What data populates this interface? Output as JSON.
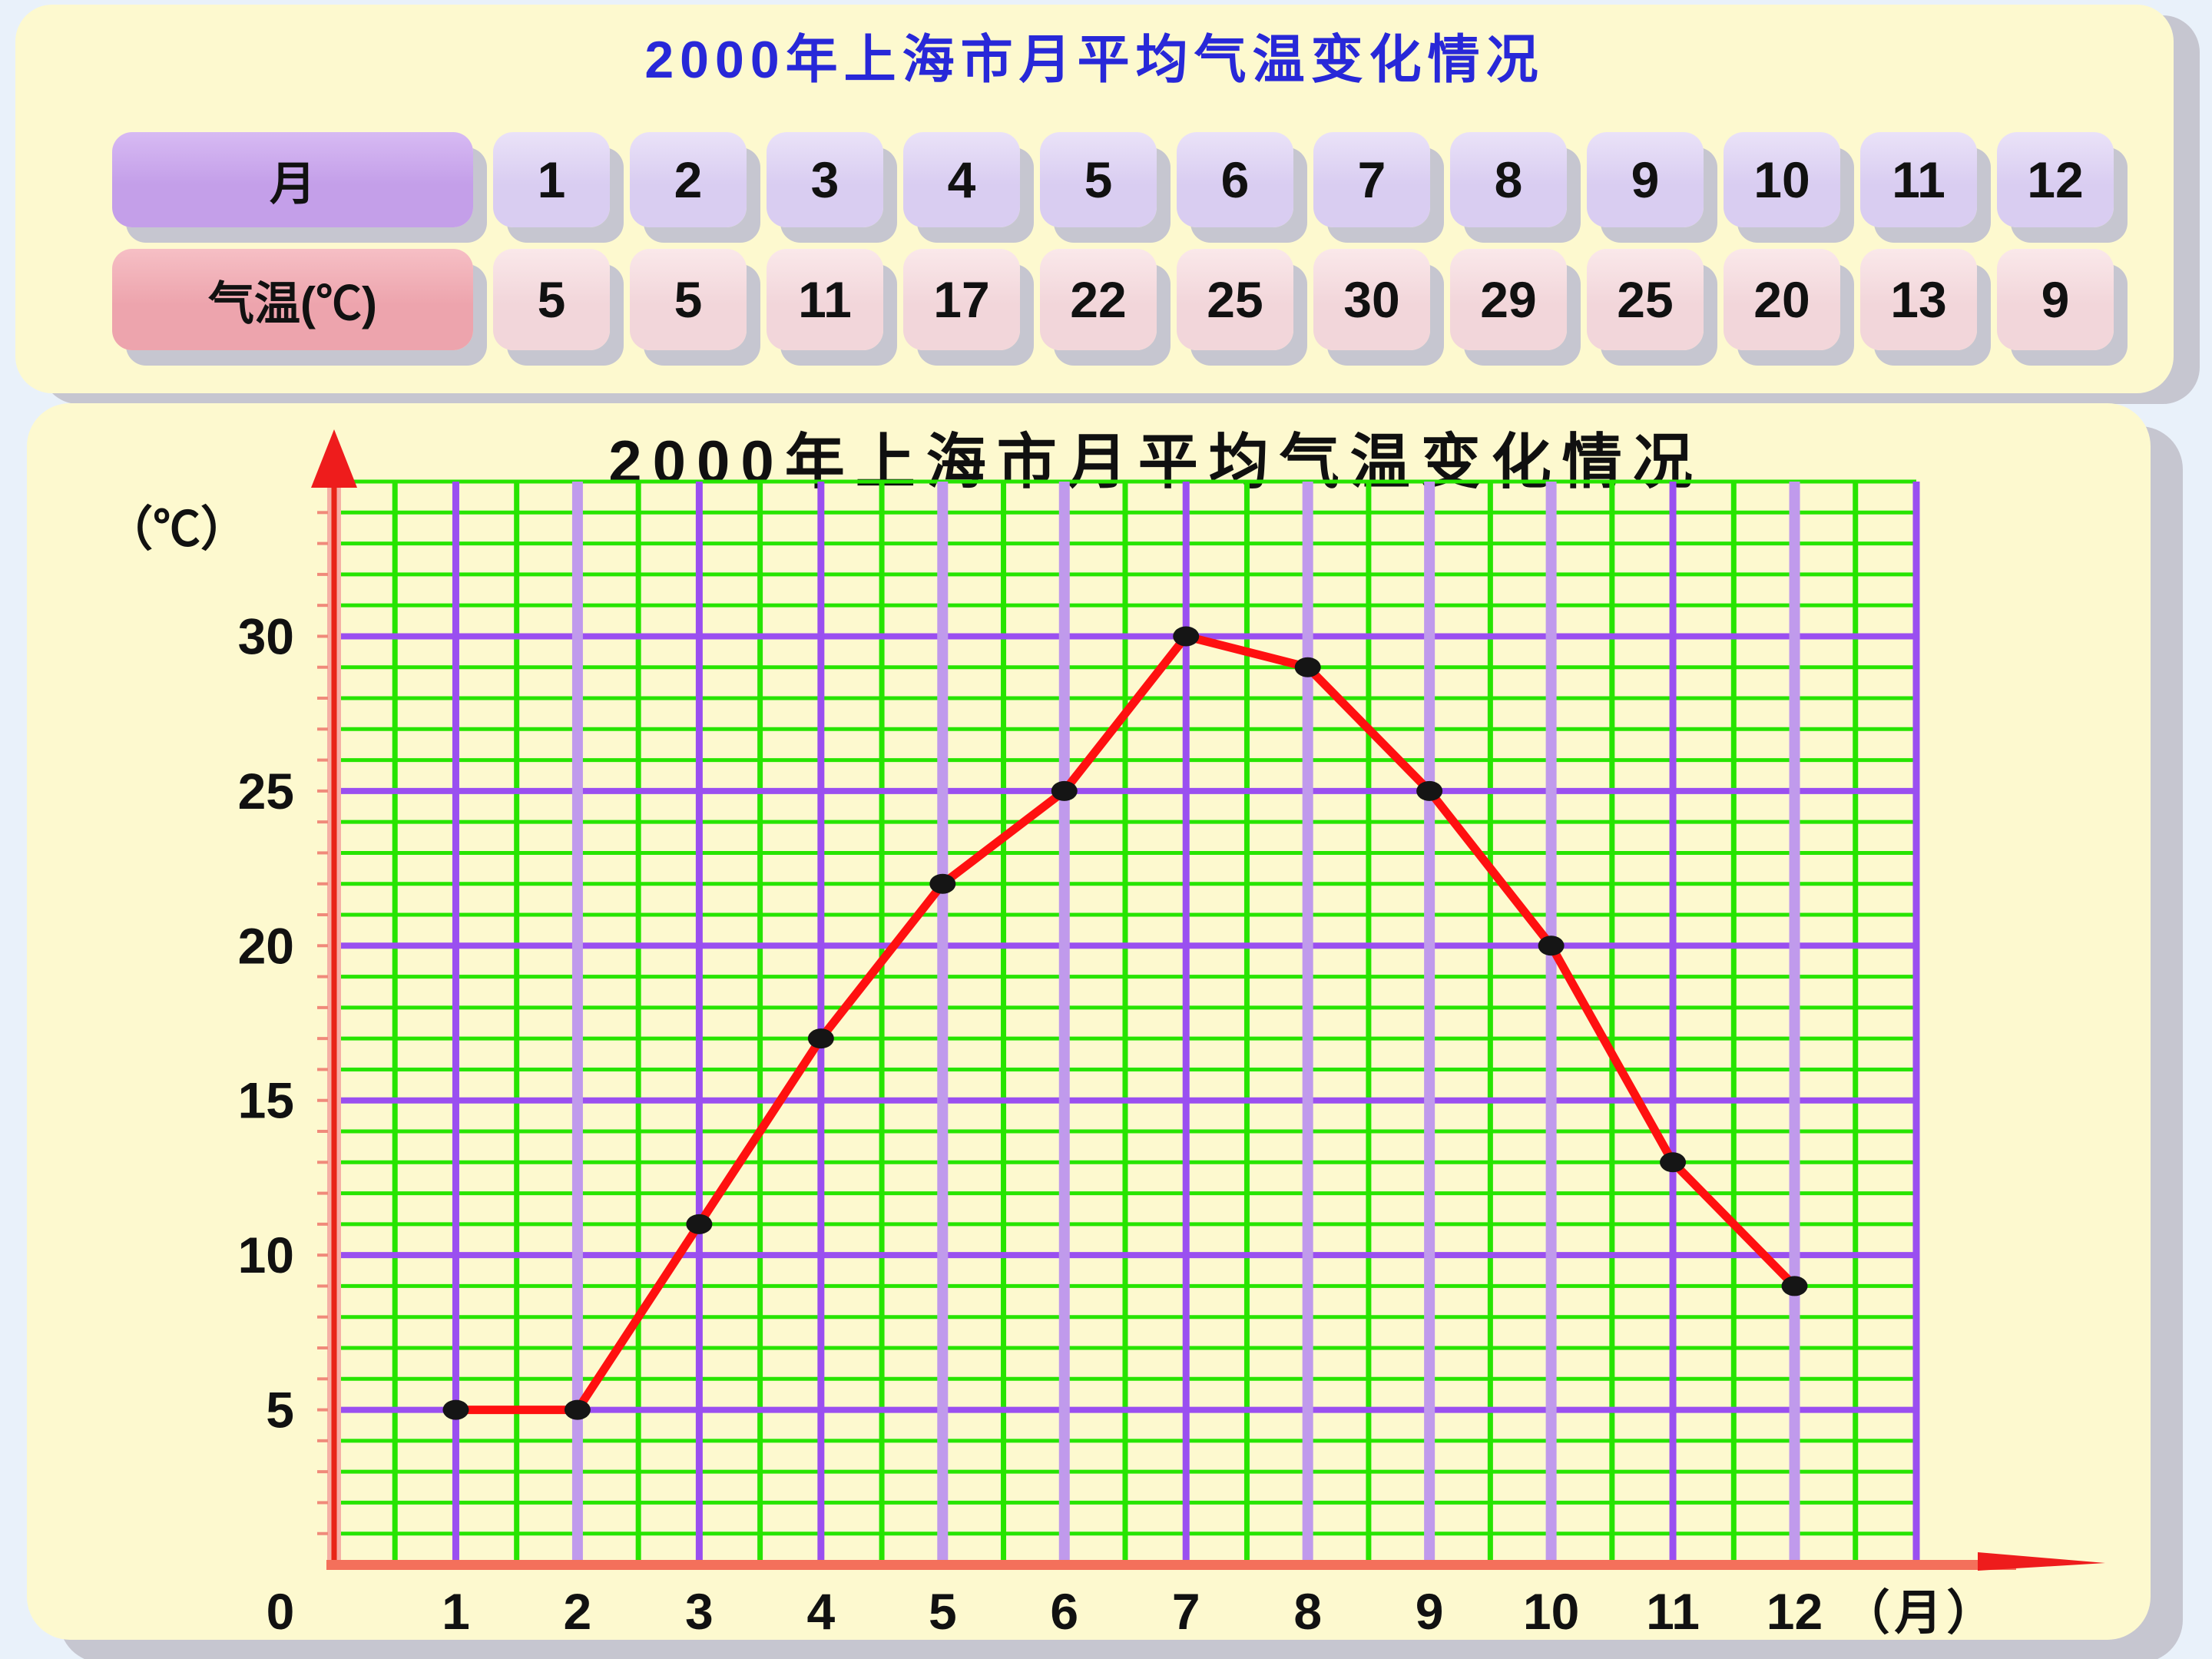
{
  "page": {
    "title": "2000年上海市月平均气温变化情况"
  },
  "table": {
    "month_header": "月",
    "temp_header": "气温(℃)",
    "months": [
      "1",
      "2",
      "3",
      "4",
      "5",
      "6",
      "7",
      "8",
      "9",
      "10",
      "11",
      "12"
    ],
    "temps": [
      "5",
      "5",
      "11",
      "17",
      "22",
      "25",
      "30",
      "29",
      "25",
      "20",
      "13",
      "9"
    ]
  },
  "chart_data": {
    "type": "line",
    "title": "2000年上海市月平均气温变化情况",
    "ylabel": "（℃）",
    "xlabel": "（月）",
    "origin_label": "0",
    "x": [
      1,
      2,
      3,
      4,
      5,
      6,
      7,
      8,
      9,
      10,
      11,
      12
    ],
    "values": [
      5,
      5,
      11,
      17,
      22,
      25,
      30,
      29,
      25,
      20,
      13,
      9
    ],
    "yticks": [
      5,
      10,
      15,
      20,
      25,
      30
    ],
    "xticks": [
      1,
      2,
      3,
      4,
      5,
      6,
      7,
      8,
      9,
      10,
      11,
      12
    ],
    "ylim": [
      0,
      35
    ],
    "xlim": [
      0,
      13
    ],
    "grid": {
      "x_minor_step": 0.5,
      "y_minor_step": 1,
      "light_vlines": [
        2,
        5,
        6,
        8,
        9,
        10,
        12
      ],
      "legend": "none"
    },
    "colors": {
      "panel_background": "#fdf9cf",
      "panel_shadow": "#c6c6d0",
      "grid_green": "#27e400",
      "grid_purple": "#9a4ff0",
      "grid_purple_light": "#c09aec",
      "axis_red": "#ee1c1c",
      "axis_core_red": "#e82517",
      "axis_fringe": "#f5b0a5",
      "axis_salmon": "#f4705b",
      "tick_red": "#f08a7a",
      "line": "#ff1010",
      "point": "#151515",
      "title_blue": "#2828d8"
    }
  }
}
